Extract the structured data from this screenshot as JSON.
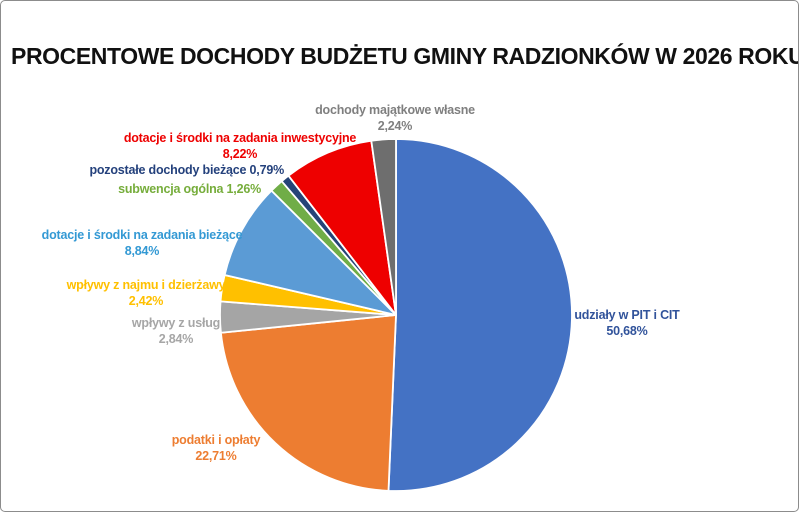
{
  "chart_data": {
    "type": "pie",
    "title": "PROCENTOWE DOCHODY BUDŻETU GMINY RADZIONKÓW W 2026 ROKU",
    "start_angle_deg": 0,
    "direction": "clockwise",
    "legend_position": "none",
    "background": "#ffffff",
    "series": [
      {
        "name": "udziały w PIT i CIT",
        "value": 50.68,
        "color": "#4472C4",
        "label_color": "#31539B",
        "label_lines": [
          "udziały w PIT i CIT",
          "50,68%"
        ]
      },
      {
        "name": "podatki i opłaty",
        "value": 22.71,
        "color": "#ED7D31",
        "label_color": "#ED7D31",
        "label_lines": [
          "podatki i opłaty",
          "22,71%"
        ]
      },
      {
        "name": "wpływy z usług",
        "value": 2.84,
        "color": "#A5A5A5",
        "label_color": "#A6A6A6",
        "label_lines": [
          "wpływy z usług",
          "2,84%"
        ]
      },
      {
        "name": "wpływy z najmu i dzierżawy",
        "value": 2.42,
        "color": "#FFC000",
        "label_color": "#FFC000",
        "label_lines": [
          "wpływy z najmu i dzierżawy",
          "2,42%"
        ]
      },
      {
        "name": "dotacje i środki na zadania bieżące",
        "value": 8.84,
        "color": "#5B9BD5",
        "label_color": "#3399D4",
        "label_lines": [
          "dotacje i środki na zadania bieżące",
          "8,84%"
        ]
      },
      {
        "name": "subwencja ogólna",
        "value": 1.26,
        "color": "#70AD47",
        "label_color": "#76AD3B",
        "label_lines": [
          "subwencja ogólna 1,26%"
        ]
      },
      {
        "name": "pozostałe dochody bieżące",
        "value": 0.79,
        "color": "#264478",
        "label_color": "#24417C",
        "label_lines": [
          "pozostałe dochody bieżące 0,79%"
        ]
      },
      {
        "name": "dotacje i środki na zadania inwestycyjne",
        "value": 8.22,
        "color": "#EE0000",
        "label_color": "#EE0000",
        "label_lines": [
          "dotacje i środki na zadania inwestycyjne",
          "8,22%"
        ]
      },
      {
        "name": "dochody majątkowe własne",
        "value": 2.24,
        "color": "#6E6E6E",
        "label_color": "#7F7F7F",
        "label_lines": [
          "dochody majątkowe własne",
          "2,24%"
        ]
      }
    ]
  }
}
